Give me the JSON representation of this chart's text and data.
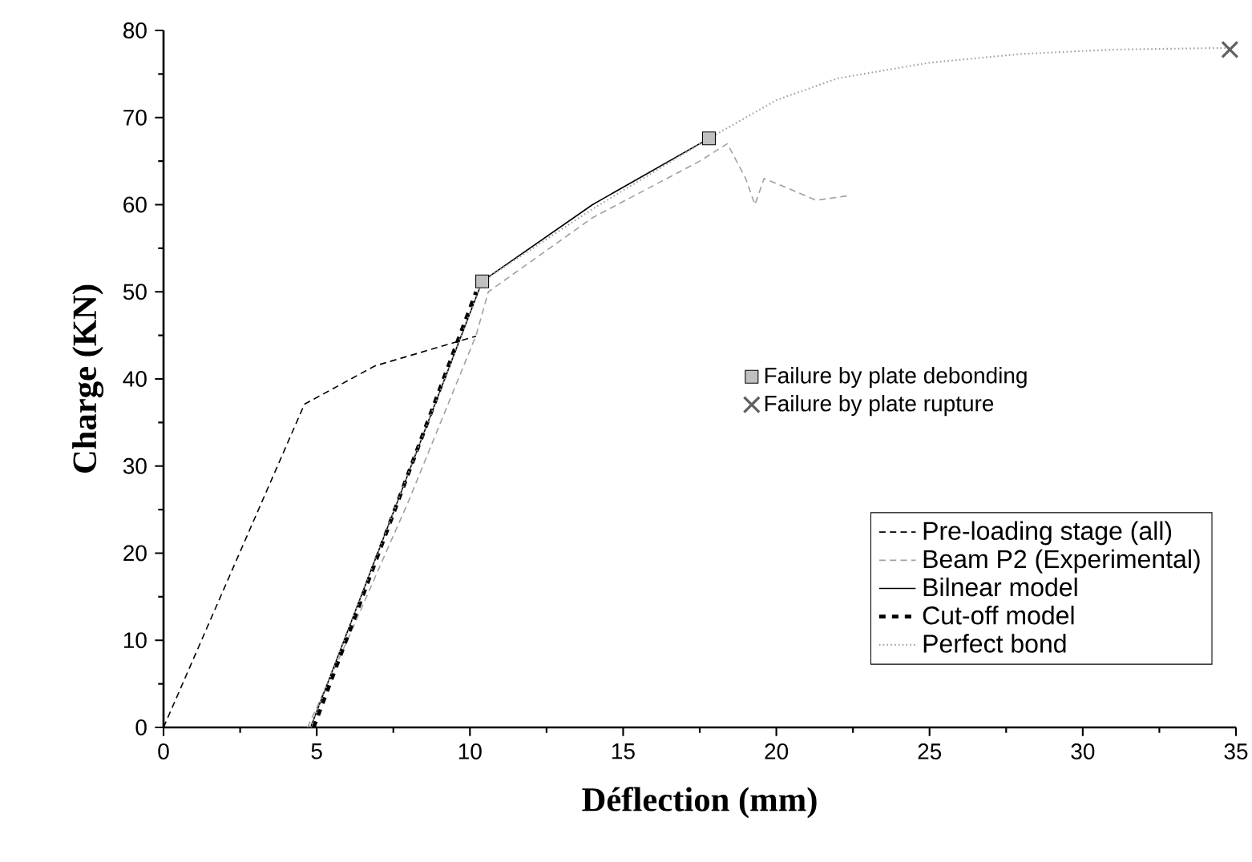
{
  "chart_data": {
    "type": "line",
    "xlabel": "Déflection (mm)",
    "ylabel": "Charge (KN)",
    "xlim": [
      0,
      35
    ],
    "ylim": [
      0,
      80
    ],
    "xticks": [
      0,
      5,
      10,
      15,
      20,
      25,
      30,
      35
    ],
    "yticks": [
      0,
      10,
      20,
      30,
      40,
      50,
      60,
      70,
      80
    ],
    "legend": "bottom right",
    "series": [
      {
        "name": "Pre-loading stage (all)",
        "line_style": "dashed",
        "color": "#000000",
        "x": [
          0,
          4.6,
          6.9,
          10.2
        ],
        "values": [
          0,
          37.1,
          41.5,
          44.9
        ]
      },
      {
        "name": "Beam P2 (Experimental)",
        "line_style": "dashed",
        "color": "#a0a0a0",
        "x": [
          4.7,
          6,
          8,
          10.2,
          10.6,
          14,
          17.5,
          18.4,
          19.0,
          19.3,
          19.6,
          20.3,
          21.3,
          22.3
        ],
        "values": [
          0,
          10,
          26,
          45,
          50,
          58.5,
          65,
          67,
          63,
          60,
          63,
          62,
          60.5,
          61
        ]
      },
      {
        "name": "Bilnear model",
        "line_style": "solid",
        "color": "#000000",
        "x": [
          4.8,
          10.4,
          14,
          17.8
        ],
        "values": [
          0,
          51.2,
          60,
          67.6
        ]
      },
      {
        "name": "Cut-off model",
        "line_style": "dashed",
        "color": "#000000",
        "x": [
          4.9,
          10.2
        ],
        "values": [
          0,
          50
        ]
      },
      {
        "name": "Perfect bond",
        "line_style": "dotted",
        "color": "#a0a0a0",
        "x": [
          4.8,
          10.4,
          14,
          17.8,
          20,
          22,
          25,
          28,
          31,
          34.8
        ],
        "values": [
          0,
          51.2,
          59.5,
          67.6,
          72,
          74.5,
          76.3,
          77.3,
          77.8,
          78
        ]
      },
      {
        "name": "Failure by plate debonding",
        "type": "scatter",
        "marker": "square",
        "color": "#c0c0c0",
        "x": [
          10.4,
          17.8
        ],
        "values": [
          51.2,
          67.6
        ]
      },
      {
        "name": "Failure by plate rupture",
        "type": "scatter",
        "marker": "cross",
        "color": "#606060",
        "x": [
          34.8
        ],
        "values": [
          77.8
        ]
      }
    ]
  }
}
